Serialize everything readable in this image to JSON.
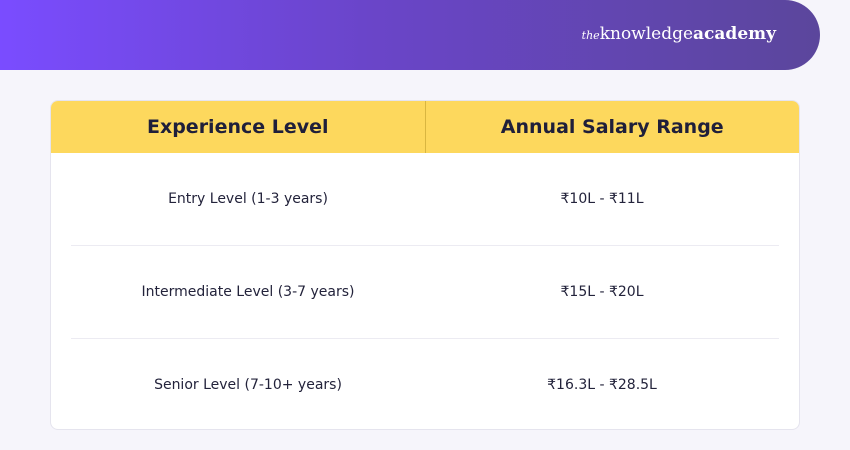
{
  "header": {
    "brand": {
      "prefix": "the",
      "name": "knowledge",
      "suffix": "academy"
    }
  },
  "table": {
    "columns": [
      "Experience Level",
      "Annual Salary Range"
    ],
    "rows": [
      [
        "Entry Level (1-3 years)",
        "₹10L - ₹11L"
      ],
      [
        "Intermediate Level (3-7 years)",
        "₹15L - ₹20L"
      ],
      [
        "Senior Level (7-10+ years)",
        "₹16.3L - ₹28.5L"
      ]
    ]
  }
}
